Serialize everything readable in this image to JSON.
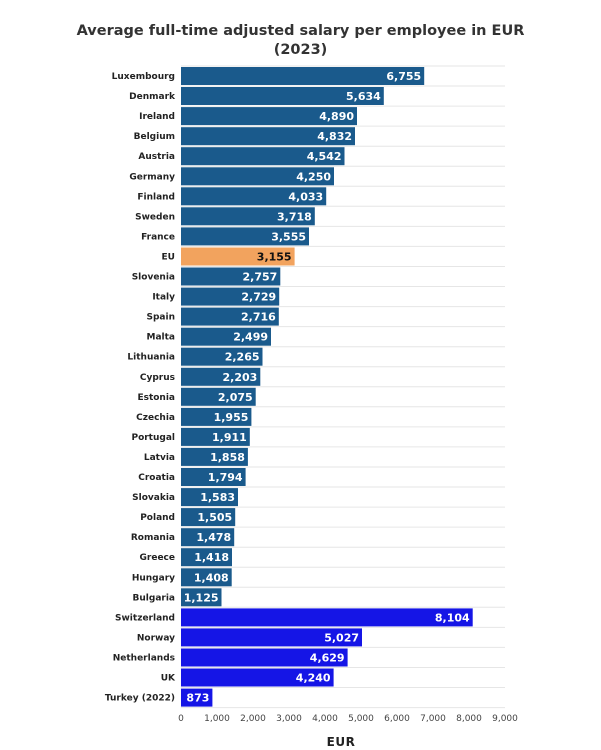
{
  "colors": {
    "eu_member": "#1a5a8c",
    "eu_average": "#f2a35e",
    "non_eu": "#1515e6",
    "grid": "#e6e6e6"
  },
  "chart_data": {
    "type": "bar",
    "orientation": "horizontal",
    "title_line1": "Average full-time adjusted salary per employee in EUR",
    "title_line2": "(2023)",
    "xlabel": "EUR",
    "ylabel": "",
    "xlim": [
      0,
      9000
    ],
    "x_ticks": [
      "0",
      "1,000",
      "2,000",
      "3,000",
      "4,000",
      "5,000",
      "6,000",
      "7,000",
      "8,000",
      "9,000"
    ],
    "grid": true,
    "legend": "none",
    "bars": [
      {
        "category": "Luxembourg",
        "value": 6755,
        "label": "6,755",
        "group": "eu_member"
      },
      {
        "category": "Denmark",
        "value": 5634,
        "label": "5,634",
        "group": "eu_member"
      },
      {
        "category": "Ireland",
        "value": 4890,
        "label": "4,890",
        "group": "eu_member"
      },
      {
        "category": "Belgium",
        "value": 4832,
        "label": "4,832",
        "group": "eu_member"
      },
      {
        "category": "Austria",
        "value": 4542,
        "label": "4,542",
        "group": "eu_member"
      },
      {
        "category": "Germany",
        "value": 4250,
        "label": "4,250",
        "group": "eu_member"
      },
      {
        "category": "Finland",
        "value": 4033,
        "label": "4,033",
        "group": "eu_member"
      },
      {
        "category": "Sweden",
        "value": 3718,
        "label": "3,718",
        "group": "eu_member"
      },
      {
        "category": "France",
        "value": 3555,
        "label": "3,555",
        "group": "eu_member"
      },
      {
        "category": "EU",
        "value": 3155,
        "label": "3,155",
        "group": "eu_average"
      },
      {
        "category": "Slovenia",
        "value": 2757,
        "label": "2,757",
        "group": "eu_member"
      },
      {
        "category": "Italy",
        "value": 2729,
        "label": "2,729",
        "group": "eu_member"
      },
      {
        "category": "Spain",
        "value": 2716,
        "label": "2,716",
        "group": "eu_member"
      },
      {
        "category": "Malta",
        "value": 2499,
        "label": "2,499",
        "group": "eu_member"
      },
      {
        "category": "Lithuania",
        "value": 2265,
        "label": "2,265",
        "group": "eu_member"
      },
      {
        "category": "Cyprus",
        "value": 2203,
        "label": "2,203",
        "group": "eu_member"
      },
      {
        "category": "Estonia",
        "value": 2075,
        "label": "2,075",
        "group": "eu_member"
      },
      {
        "category": "Czechia",
        "value": 1955,
        "label": "1,955",
        "group": "eu_member"
      },
      {
        "category": "Portugal",
        "value": 1911,
        "label": "1,911",
        "group": "eu_member"
      },
      {
        "category": "Latvia",
        "value": 1858,
        "label": "1,858",
        "group": "eu_member"
      },
      {
        "category": "Croatia",
        "value": 1794,
        "label": "1,794",
        "group": "eu_member"
      },
      {
        "category": "Slovakia",
        "value": 1583,
        "label": "1,583",
        "group": "eu_member"
      },
      {
        "category": "Poland",
        "value": 1505,
        "label": "1,505",
        "group": "eu_member"
      },
      {
        "category": "Romania",
        "value": 1478,
        "label": "1,478",
        "group": "eu_member"
      },
      {
        "category": "Greece",
        "value": 1418,
        "label": "1,418",
        "group": "eu_member"
      },
      {
        "category": "Hungary",
        "value": 1408,
        "label": "1,408",
        "group": "eu_member"
      },
      {
        "category": "Bulgaria",
        "value": 1125,
        "label": "1,125",
        "group": "eu_member"
      },
      {
        "category": "Switzerland",
        "value": 8104,
        "label": "8,104",
        "group": "non_eu"
      },
      {
        "category": "Norway",
        "value": 5027,
        "label": "5,027",
        "group": "non_eu"
      },
      {
        "category": "Netherlands",
        "value": 4629,
        "label": "4,629",
        "group": "non_eu"
      },
      {
        "category": "UK",
        "value": 4240,
        "label": "4,240",
        "group": "non_eu"
      },
      {
        "category": "Turkey (2022)",
        "value": 873,
        "label": "873",
        "group": "non_eu"
      }
    ]
  }
}
